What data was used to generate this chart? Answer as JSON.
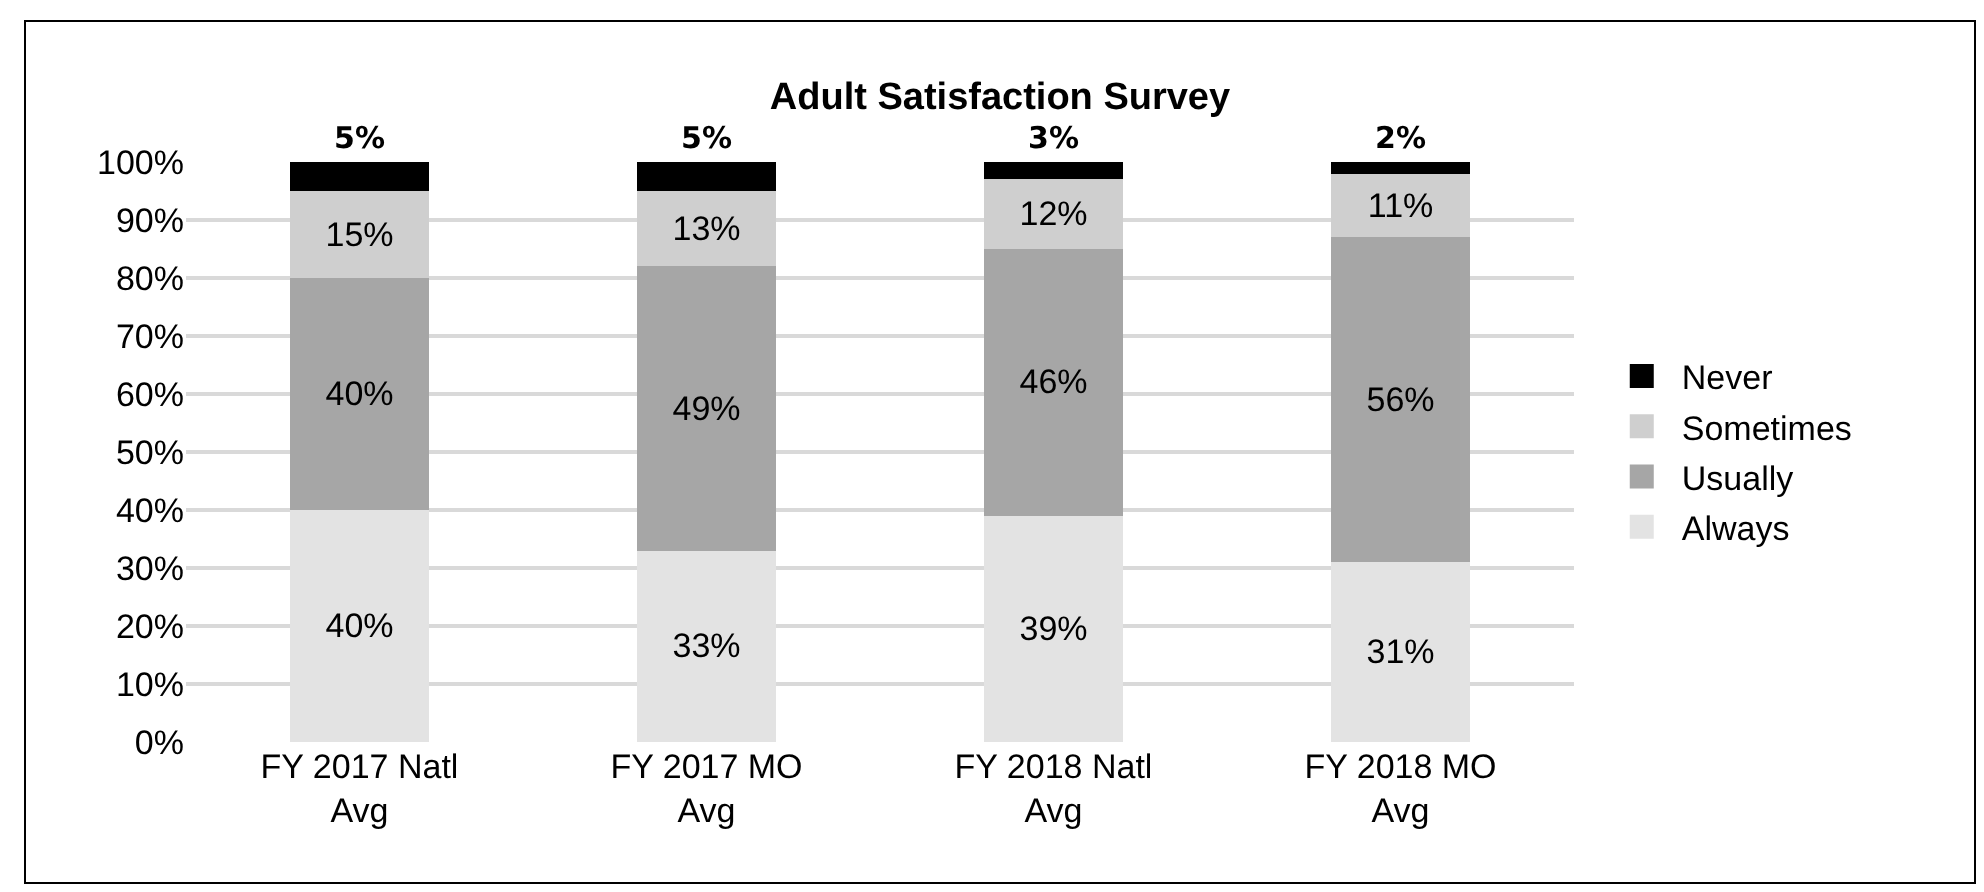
{
  "chart_data": {
    "type": "bar",
    "stacked": true,
    "title": "Adult Satisfaction Survey",
    "categories": [
      "FY 2017 Natl Avg",
      "FY 2017 MO Avg",
      "FY 2018 Natl Avg",
      "FY 2018 MO Avg"
    ],
    "series": [
      {
        "name": "Always",
        "color": "#e3e3e3",
        "values": [
          40,
          33,
          39,
          31
        ],
        "value_labels": [
          "40%",
          "33%",
          "39%",
          "31%"
        ]
      },
      {
        "name": "Usually",
        "color": "#a6a6a6",
        "values": [
          40,
          49,
          46,
          56
        ],
        "value_labels": [
          "40%",
          "49%",
          "46%",
          "56%"
        ]
      },
      {
        "name": "Sometimes",
        "color": "#cfcfcf",
        "values": [
          15,
          13,
          12,
          11
        ],
        "value_labels": [
          "15%",
          "13%",
          "12%",
          "11%"
        ]
      },
      {
        "name": "Never",
        "color": "#000000",
        "values": [
          5,
          5,
          3,
          2
        ],
        "value_labels": [
          "5%",
          "5%",
          "3%",
          "2%"
        ]
      }
    ],
    "ylim": [
      0,
      100
    ],
    "yticks": [
      {
        "value": 0,
        "label": "0%"
      },
      {
        "value": 10,
        "label": "10%"
      },
      {
        "value": 20,
        "label": "20%"
      },
      {
        "value": 30,
        "label": "30%"
      },
      {
        "value": 40,
        "label": "40%"
      },
      {
        "value": 50,
        "label": "50%"
      },
      {
        "value": 60,
        "label": "60%"
      },
      {
        "value": 70,
        "label": "70%"
      },
      {
        "value": 80,
        "label": "80%"
      },
      {
        "value": 90,
        "label": "90%"
      },
      {
        "value": 100,
        "label": "100%"
      }
    ],
    "grid": "y",
    "legend": "right"
  }
}
